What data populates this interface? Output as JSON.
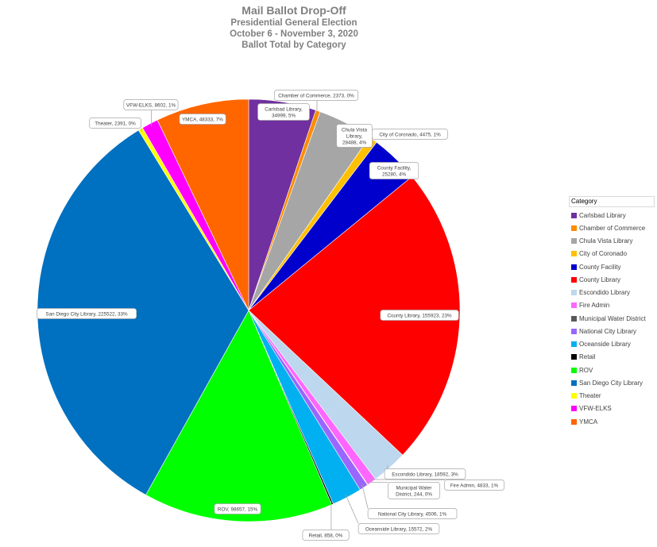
{
  "chart_data": {
    "type": "pie",
    "title": "Mail Ballot Drop-Off",
    "subtitle_lines": [
      "Presidential General Election",
      "October 6 - November 3, 2020",
      "Ballot Total by Category"
    ],
    "legend_title": "Category",
    "legend_position": "right",
    "slices": [
      {
        "name": "Carlsbad Library",
        "value": 34999,
        "percent": "5%",
        "color": "#7030a0",
        "label": [
          "Carlsbad Library,",
          "34999, 5%"
        ]
      },
      {
        "name": "Chamber of Commerce",
        "value": 2373,
        "percent": "0%",
        "color": "#ff8c00",
        "label": [
          "Chamber of Commerce, 2373, 0%"
        ]
      },
      {
        "name": "Chula Vista Library",
        "value": 28488,
        "percent": "4%",
        "color": "#a6a6a6",
        "label": [
          "Chula Vista",
          "Library,",
          "28488, 4%"
        ]
      },
      {
        "name": "City of Coronado",
        "value": 4475,
        "percent": "1%",
        "color": "#ffc000",
        "label": [
          "City of Coronado, 4475, 1%"
        ]
      },
      {
        "name": "County Facility",
        "value": 25280,
        "percent": "4%",
        "color": "#0000cc",
        "label": [
          "County Facility,",
          "25280, 4%"
        ]
      },
      {
        "name": "County Library",
        "value": 155923,
        "percent": "23%",
        "color": "#ff0000",
        "label": [
          "County Library, 155923, 23%"
        ]
      },
      {
        "name": "Escondido Library",
        "value": 18592,
        "percent": "3%",
        "color": "#bdd7ee",
        "label": [
          "Escondido Library, 18592, 3%"
        ]
      },
      {
        "name": "Fire Admin",
        "value": 4833,
        "percent": "1%",
        "color": "#ff66ff",
        "label": [
          "Fire Admin, 4833, 1%"
        ]
      },
      {
        "name": "Municipal Water District",
        "value": 244,
        "percent": "0%",
        "color": "#595959",
        "label": [
          "Municipal Water",
          "District, 244, 0%"
        ]
      },
      {
        "name": "National City Library",
        "value": 4506,
        "percent": "1%",
        "color": "#9966ff",
        "label": [
          "National City Library, 4506, 1%"
        ]
      },
      {
        "name": "Oceanside Library",
        "value": 15572,
        "percent": "2%",
        "color": "#00b0f0",
        "label": [
          "Oceanside Library, 15572, 2%"
        ]
      },
      {
        "name": "Retail",
        "value": 858,
        "percent": "0%",
        "color": "#000000",
        "label": [
          "Retail, 858, 0%"
        ]
      },
      {
        "name": "ROV",
        "value": 98657,
        "percent": "15%",
        "color": "#00ff00",
        "label": [
          "ROV, 98657, 15%"
        ]
      },
      {
        "name": "San Diego City Library",
        "value": 225522,
        "percent": "33%",
        "color": "#0070c0",
        "label": [
          "San Diego City Library, 225522, 33%"
        ]
      },
      {
        "name": "Theater",
        "value": 2391,
        "percent": "0%",
        "color": "#ffff00",
        "label": [
          "Theater, 2391, 0%"
        ]
      },
      {
        "name": "VFW-ELKS",
        "value": 8602,
        "percent": "1%",
        "color": "#ff00ff",
        "label": [
          "VFW-ELKS, 8602, 1%"
        ]
      },
      {
        "name": "YMCA",
        "value": 48333,
        "percent": "7%",
        "color": "#ff6600",
        "label": [
          "YMCA, 48333, 7%"
        ]
      }
    ]
  }
}
